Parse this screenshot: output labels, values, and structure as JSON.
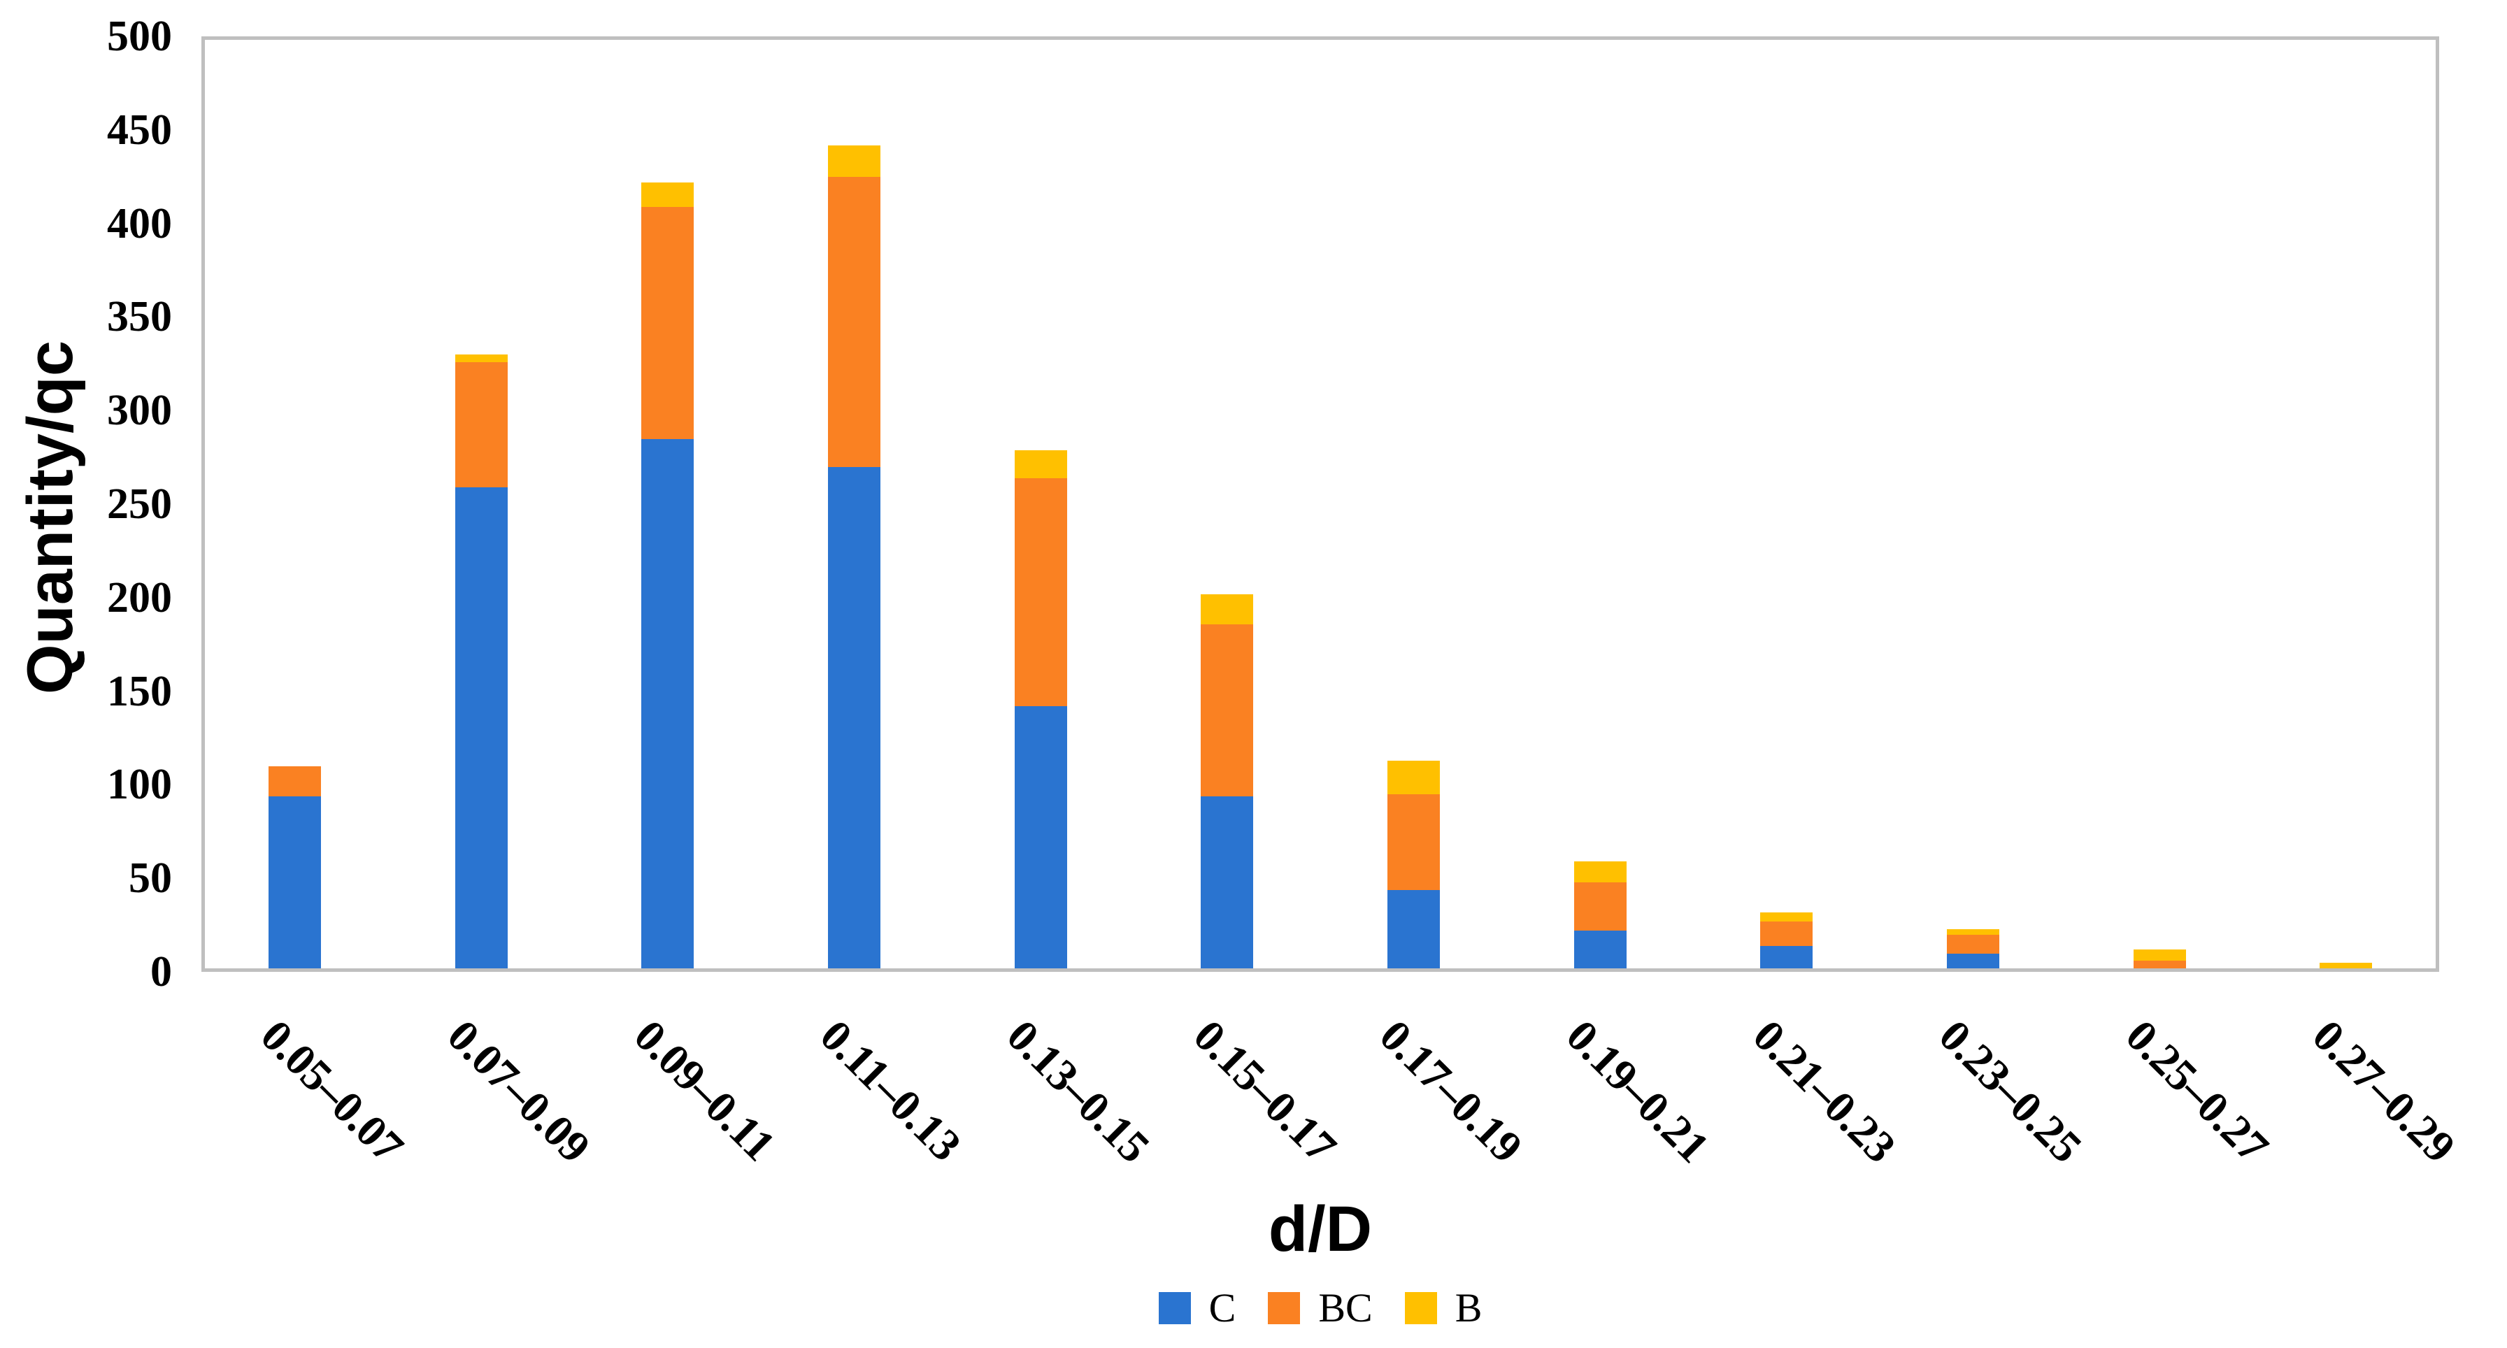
{
  "chart_data": {
    "type": "bar",
    "stacked": true,
    "title": "",
    "xlabel": "d/D",
    "ylabel": "Quantity/qc",
    "categories": [
      "0.05–0.07",
      "0.07–0.09",
      "0.09–0.11",
      "0.11–0.13",
      "0.13–0.15",
      "0.15–0.17",
      "0.17–0.19",
      "0.19–0.21",
      "0.21–0.23",
      "0.23–0.25",
      "0.25–0.27",
      "0.27–0.29"
    ],
    "series": [
      {
        "name": "C",
        "color": "#2A74D0",
        "values": [
          92,
          257,
          283,
          268,
          140,
          92,
          42,
          20,
          12,
          8,
          0,
          0
        ]
      },
      {
        "name": "BC",
        "color": "#FA8122",
        "values": [
          16,
          67,
          124,
          155,
          122,
          92,
          51,
          26,
          13,
          10,
          4,
          0
        ]
      },
      {
        "name": "B",
        "color": "#FFC000",
        "values": [
          0,
          4,
          13,
          17,
          15,
          16,
          18,
          11,
          5,
          3,
          6,
          3
        ]
      }
    ],
    "ylim": [
      0,
      500
    ],
    "yticks": [
      0,
      50,
      100,
      150,
      200,
      250,
      300,
      350,
      400,
      450,
      500
    ],
    "grid": false,
    "legend_position": "bottom",
    "plot_border_color": "#BFBFBF"
  }
}
